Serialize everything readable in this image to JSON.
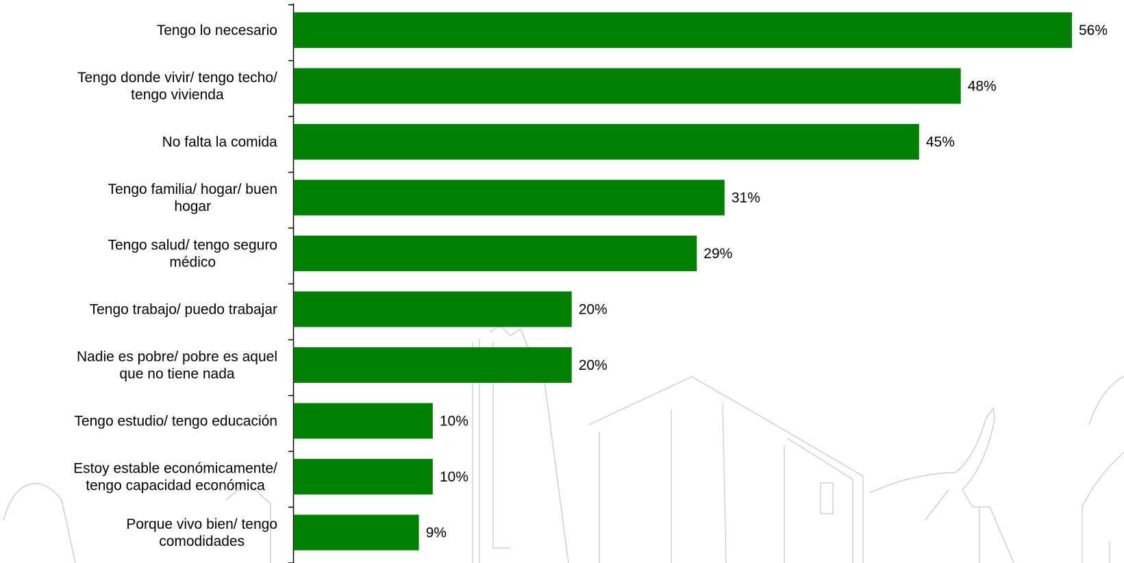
{
  "chart_data": {
    "type": "bar",
    "orientation": "horizontal",
    "categories": [
      [
        "Tengo lo necesario"
      ],
      [
        "Tengo donde vivir/ tengo techo/",
        "tengo vivienda"
      ],
      [
        "No falta la comida"
      ],
      [
        "Tengo familia/ hogar/ buen",
        "hogar"
      ],
      [
        "Tengo salud/ tengo seguro",
        "médico"
      ],
      [
        "Tengo trabajo/ puedo trabajar"
      ],
      [
        "Nadie es pobre/ pobre es aquel",
        "que no tiene nada"
      ],
      [
        "Tengo estudio/ tengo educación"
      ],
      [
        "Estoy estable económicamente/",
        "tengo capacidad económica"
      ],
      [
        "Porque vivo bien/ tengo",
        "comodidades"
      ]
    ],
    "values": [
      56,
      48,
      45,
      31,
      29,
      20,
      20,
      10,
      10,
      9
    ],
    "value_labels": [
      "56%",
      "48%",
      "45%",
      "31%",
      "29%",
      "20%",
      "20%",
      "10%",
      "10%",
      "9%"
    ],
    "xlim": [
      0,
      56
    ],
    "bar_color": "#008000",
    "grid": false,
    "legend": "none"
  }
}
